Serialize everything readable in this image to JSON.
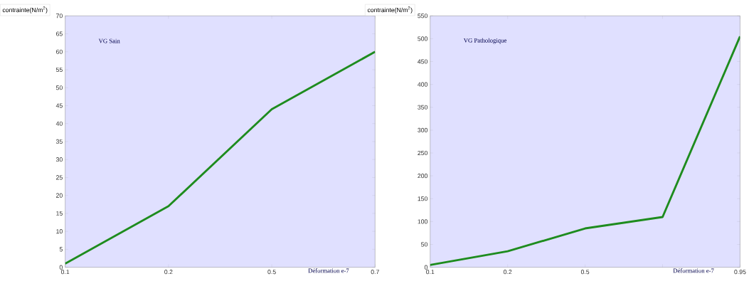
{
  "chart_data": [
    {
      "type": "line",
      "annotations": [
        "VG Sain"
      ],
      "xlabel": "Déformation e-7",
      "ylabel": "contrainte(N/m$^{2}$)",
      "categories": [
        "0.1",
        "0.2",
        "0.5",
        "0.7"
      ],
      "series": [
        {
          "color": "#1e8c1e",
          "values": [
            1,
            17,
            44,
            60
          ]
        }
      ],
      "ylim": [
        0,
        70
      ],
      "yticks": [
        0,
        5,
        10,
        15,
        20,
        25,
        30,
        35,
        40,
        45,
        50,
        55,
        60,
        65,
        70
      ],
      "grid": false,
      "marker": "none"
    },
    {
      "type": "line",
      "annotations": [
        "VG Pathologique"
      ],
      "xlabel": "Déformation e-7",
      "ylabel": "contrainte(N/m$^{2}$)",
      "categories": [
        "0.1",
        "0.2",
        "0.5",
        null,
        "0.95"
      ],
      "series": [
        {
          "color": "#1e8c1e",
          "values": [
            5,
            35,
            85,
            110,
            505
          ]
        }
      ],
      "ylim": [
        0,
        550
      ],
      "yticks": [
        0,
        50,
        100,
        150,
        200,
        250,
        300,
        350,
        400,
        450,
        500,
        550
      ],
      "grid": false,
      "marker": "none"
    }
  ]
}
